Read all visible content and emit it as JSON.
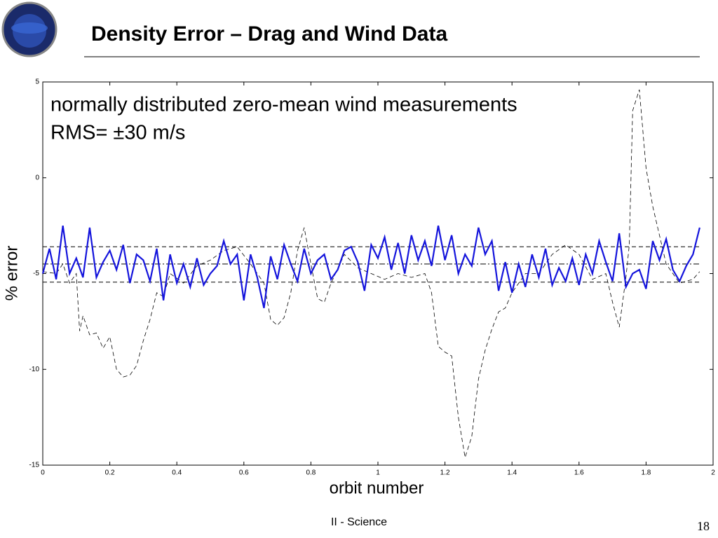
{
  "header": {
    "title": "Density Error – Drag and Wind Data"
  },
  "footer": {
    "section": "II - Science",
    "page": "18"
  },
  "chart_data": {
    "type": "line",
    "xlabel": "orbit number",
    "ylabel": "% error",
    "annotations": [
      "normally distributed zero-mean wind measurements",
      "RMS= ±30 m/s"
    ],
    "xlim": [
      0,
      2
    ],
    "xticks": [
      0,
      0.2,
      0.4,
      0.6,
      0.8,
      1,
      1.2,
      1.4,
      1.6,
      1.8,
      2
    ],
    "ylim": [
      -15,
      5
    ],
    "yticks": [
      5,
      0,
      -5,
      -10,
      -15
    ],
    "series": [
      {
        "color": "#000000",
        "style": "dashed",
        "width": 0.8,
        "x": [
          0,
          0.04,
          0.06,
          0.08,
          0.1,
          0.11,
          0.12,
          0.14,
          0.16,
          0.18,
          0.2,
          0.22,
          0.24,
          0.26,
          0.28,
          0.3,
          0.32,
          0.34,
          0.36,
          0.38,
          0.42,
          0.46,
          0.5,
          0.54,
          0.58,
          0.62,
          0.66,
          0.68,
          0.7,
          0.72,
          0.74,
          0.76,
          0.78,
          0.8,
          0.82,
          0.84,
          0.86,
          0.9,
          0.94,
          0.98,
          1.02,
          1.06,
          1.1,
          1.14,
          1.16,
          1.18,
          1.2,
          1.22,
          1.24,
          1.26,
          1.28,
          1.3,
          1.32,
          1.34,
          1.36,
          1.38,
          1.4,
          1.44,
          1.48,
          1.52,
          1.56,
          1.6,
          1.64,
          1.68,
          1.7,
          1.72,
          1.74,
          1.75,
          1.76,
          1.78,
          1.8,
          1.82,
          1.84,
          1.86,
          1.9,
          1.94,
          1.96
        ],
        "values": [
          -4.9,
          -5.0,
          -4.5,
          -5.5,
          -5.0,
          -8.0,
          -7.2,
          -8.2,
          -8.1,
          -8.9,
          -8.3,
          -10.0,
          -10.4,
          -10.3,
          -9.8,
          -8.5,
          -7.4,
          -6.0,
          -6.2,
          -5.0,
          -5.5,
          -4.6,
          -4.3,
          -3.8,
          -3.6,
          -4.5,
          -5.5,
          -7.4,
          -7.7,
          -7.3,
          -6.0,
          -3.8,
          -2.6,
          -4.5,
          -6.3,
          -6.5,
          -5.5,
          -4.0,
          -4.7,
          -5.0,
          -5.3,
          -5.0,
          -5.2,
          -5.0,
          -6.0,
          -8.8,
          -9.1,
          -9.3,
          -12.5,
          -14.6,
          -13.5,
          -10.5,
          -9.0,
          -7.9,
          -7.0,
          -6.8,
          -6.0,
          -5.0,
          -5.0,
          -4.0,
          -3.5,
          -4.0,
          -5.3,
          -5.0,
          -6.5,
          -7.8,
          -5.2,
          -3.5,
          3.5,
          4.6,
          0.5,
          -1.5,
          -3.0,
          -4.5,
          -5.5,
          -5.3,
          -4.9
        ]
      },
      {
        "color": "#000000",
        "style": "dashed",
        "width": 1,
        "x": [
          0,
          1.96
        ],
        "values": [
          -3.6,
          -3.6
        ]
      },
      {
        "color": "#000000",
        "style": "dashdot",
        "width": 1,
        "x": [
          0,
          1.96
        ],
        "values": [
          -4.5,
          -4.5
        ]
      },
      {
        "color": "#000000",
        "style": "dashed",
        "width": 1,
        "x": [
          0,
          1.96
        ],
        "values": [
          -5.45,
          -5.45
        ]
      },
      {
        "color": "#1414dc",
        "style": "solid",
        "width": 2.2,
        "x": [
          0,
          0.02,
          0.04,
          0.06,
          0.08,
          0.1,
          0.12,
          0.14,
          0.16,
          0.18,
          0.2,
          0.22,
          0.24,
          0.26,
          0.28,
          0.3,
          0.32,
          0.34,
          0.36,
          0.38,
          0.4,
          0.42,
          0.44,
          0.46,
          0.48,
          0.5,
          0.52,
          0.54,
          0.56,
          0.58,
          0.6,
          0.62,
          0.64,
          0.66,
          0.68,
          0.7,
          0.72,
          0.74,
          0.76,
          0.78,
          0.8,
          0.82,
          0.84,
          0.86,
          0.88,
          0.9,
          0.92,
          0.94,
          0.96,
          0.98,
          1,
          1.02,
          1.04,
          1.06,
          1.08,
          1.1,
          1.12,
          1.14,
          1.16,
          1.18,
          1.2,
          1.22,
          1.24,
          1.26,
          1.28,
          1.3,
          1.32,
          1.34,
          1.36,
          1.38,
          1.4,
          1.42,
          1.44,
          1.46,
          1.48,
          1.5,
          1.52,
          1.54,
          1.56,
          1.58,
          1.6,
          1.62,
          1.64,
          1.66,
          1.68,
          1.7,
          1.72,
          1.74,
          1.76,
          1.78,
          1.8,
          1.82,
          1.84,
          1.86,
          1.88,
          1.9,
          1.92,
          1.94,
          1.96
        ],
        "values": [
          -5.0,
          -3.7,
          -5.3,
          -2.5,
          -5.0,
          -4.2,
          -5.2,
          -2.6,
          -5.2,
          -4.4,
          -3.8,
          -4.8,
          -3.5,
          -5.5,
          -4.0,
          -4.3,
          -5.4,
          -3.7,
          -6.4,
          -4.0,
          -5.5,
          -4.5,
          -5.7,
          -4.2,
          -5.6,
          -5.0,
          -4.6,
          -3.3,
          -4.5,
          -4.0,
          -6.4,
          -4.0,
          -5.2,
          -6.8,
          -4.1,
          -5.3,
          -3.5,
          -4.5,
          -5.4,
          -3.7,
          -5.0,
          -4.3,
          -4.0,
          -5.3,
          -4.8,
          -3.8,
          -3.6,
          -4.4,
          -5.9,
          -3.5,
          -4.2,
          -3.1,
          -4.8,
          -3.4,
          -5.0,
          -3.0,
          -4.3,
          -3.3,
          -4.6,
          -2.5,
          -4.3,
          -3.0,
          -5.0,
          -4.0,
          -4.6,
          -2.6,
          -4.0,
          -3.3,
          -5.9,
          -4.4,
          -6.0,
          -4.5,
          -5.7,
          -4.0,
          -5.2,
          -3.7,
          -5.6,
          -4.7,
          -5.4,
          -4.2,
          -5.6,
          -4.0,
          -5.0,
          -3.3,
          -4.4,
          -5.4,
          -2.9,
          -5.7,
          -5.0,
          -4.8,
          -5.8,
          -3.3,
          -4.3,
          -3.2,
          -4.8,
          -5.4,
          -4.6,
          -4.0,
          -2.6
        ]
      }
    ]
  }
}
